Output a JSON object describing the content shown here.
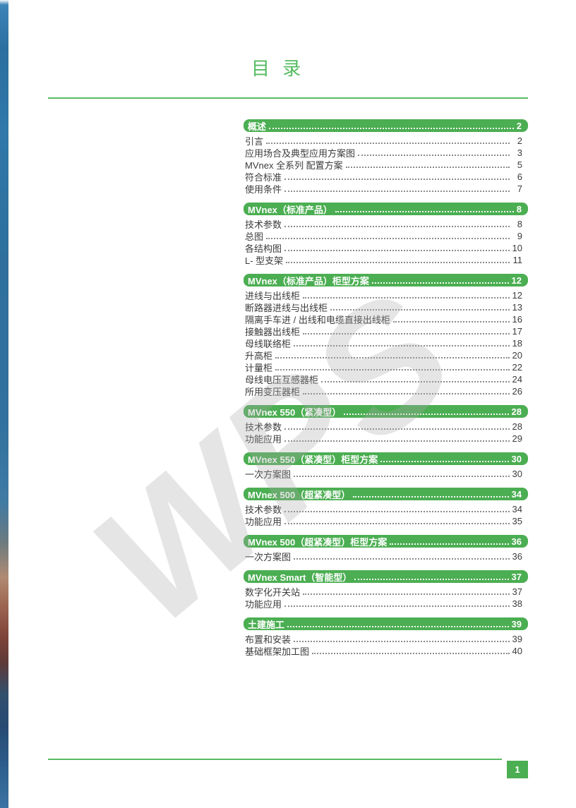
{
  "page": {
    "title": "目 录",
    "page_number": "1"
  },
  "watermark": {
    "text": "WPS"
  },
  "colors": {
    "accent_green": "#4bae52",
    "rule_green": "#58bb62",
    "title_green": "#53bb5e",
    "item_text": "#3b3b3b",
    "strip_blue": "#2f78a9"
  },
  "toc": {
    "sections": [
      {
        "title": "概述",
        "page": "2",
        "items": [
          {
            "label": "引言",
            "page": "2"
          },
          {
            "label": "应用场合及典型应用方案图",
            "page": "3"
          },
          {
            "label": "MVnex 全系列 配置方案",
            "page": "5"
          },
          {
            "label": "符合标准",
            "page": "6"
          },
          {
            "label": "使用条件",
            "page": "7"
          }
        ]
      },
      {
        "title": "MVnex（标准产品）",
        "page": "8",
        "items": [
          {
            "label": "技术参数",
            "page": "8"
          },
          {
            "label": "总图",
            "page": "9"
          },
          {
            "label": "各结构图",
            "page": "10"
          },
          {
            "label": "L- 型支架",
            "page": "11"
          }
        ]
      },
      {
        "title": "MVnex（标准产品）柜型方案",
        "page": "12",
        "items": [
          {
            "label": "进线与出线柜",
            "page": "12"
          },
          {
            "label": "断路器进线与出线柜",
            "page": "13"
          },
          {
            "label": "隔离手车进 / 出线和电缆直接出线柜",
            "page": "16"
          },
          {
            "label": "接触器出线柜",
            "page": "17"
          },
          {
            "label": "母线联络柜",
            "page": "18"
          },
          {
            "label": "升高柜",
            "page": "20"
          },
          {
            "label": "计量柜",
            "page": "22"
          },
          {
            "label": "母线电压互感器柜",
            "page": "24"
          },
          {
            "label": "所用变压器柜",
            "page": "26"
          }
        ]
      },
      {
        "title": "MVnex 550（紧凑型）",
        "page": "28",
        "items": [
          {
            "label": "技术参数",
            "page": "28"
          },
          {
            "label": "功能应用",
            "page": "29"
          }
        ]
      },
      {
        "title": "MVnex 550（紧凑型）柜型方案",
        "page": "30",
        "items": [
          {
            "label": "一次方案图",
            "page": "30"
          }
        ]
      },
      {
        "title": "MVnex 500（超紧凑型）",
        "page": "34",
        "items": [
          {
            "label": "技术参数",
            "page": "34"
          },
          {
            "label": "功能应用",
            "page": "35"
          }
        ]
      },
      {
        "title": "MVnex 500（超紧凑型）柜型方案",
        "page": "36",
        "items": [
          {
            "label": "一次方案图",
            "page": "36"
          }
        ]
      },
      {
        "title": "MVnex Smart（智能型）",
        "page": "37",
        "items": [
          {
            "label": "数字化开关站",
            "page": "37"
          },
          {
            "label": "功能应用",
            "page": "38"
          }
        ]
      },
      {
        "title": "土建施工",
        "page": "39",
        "items": [
          {
            "label": "布置和安装",
            "page": "39"
          },
          {
            "label": "基础框架加工图",
            "page": "40"
          }
        ]
      }
    ]
  }
}
